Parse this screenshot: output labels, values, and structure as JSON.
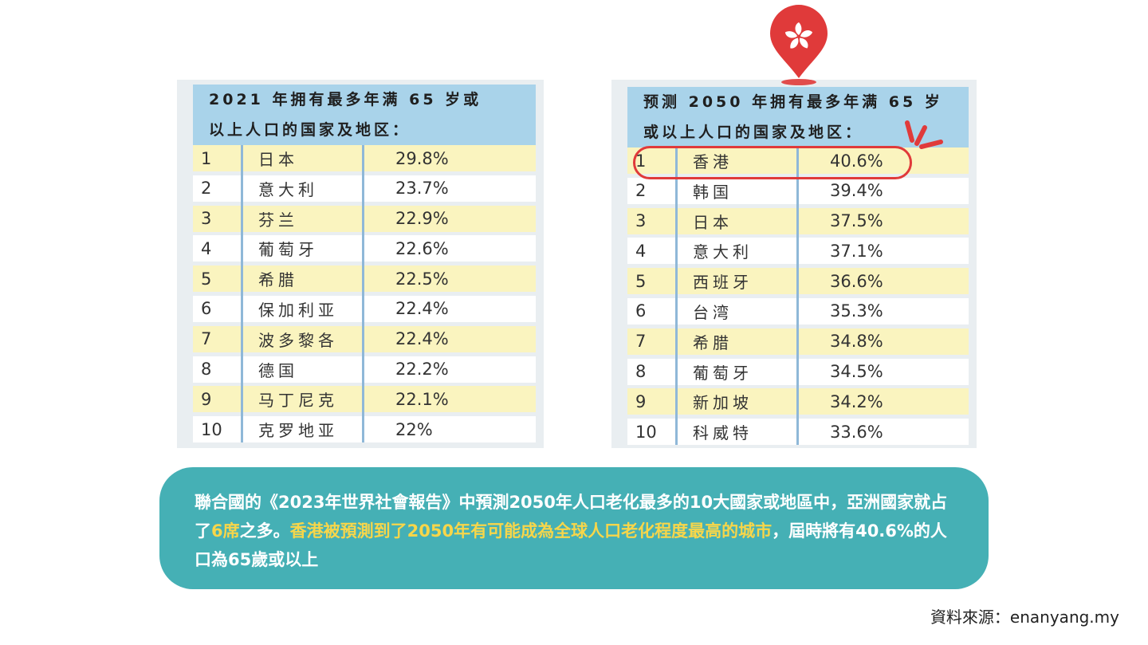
{
  "left_table": {
    "title_line1": "2021 年拥有最多年满 65 岁或",
    "title_line2": "以上人口的国家及地区：",
    "rows": [
      {
        "rank": "1",
        "name": "日本",
        "pct": "29.8%"
      },
      {
        "rank": "2",
        "name": "意大利",
        "pct": "23.7%"
      },
      {
        "rank": "3",
        "name": "芬兰",
        "pct": "22.9%"
      },
      {
        "rank": "4",
        "name": "葡萄牙",
        "pct": "22.6%"
      },
      {
        "rank": "5",
        "name": "希腊",
        "pct": "22.5%"
      },
      {
        "rank": "6",
        "name": "保加利亚",
        "pct": "22.4%"
      },
      {
        "rank": "7",
        "name": "波多黎各",
        "pct": "22.4%"
      },
      {
        "rank": "8",
        "name": "德国",
        "pct": "22.2%"
      },
      {
        "rank": "9",
        "name": "马丁尼克",
        "pct": "22.1%"
      },
      {
        "rank": "10",
        "name": "克罗地亚",
        "pct": "22%"
      }
    ]
  },
  "right_table": {
    "title_line1": "预测 2050 年拥有最多年满 65 岁",
    "title_line2": "或以上人口的国家及地区：",
    "rows": [
      {
        "rank": "1",
        "name": "香港",
        "pct": "40.6%"
      },
      {
        "rank": "2",
        "name": "韩国",
        "pct": "39.4%"
      },
      {
        "rank": "3",
        "name": "日本",
        "pct": "37.5%"
      },
      {
        "rank": "4",
        "name": "意大利",
        "pct": "37.1%"
      },
      {
        "rank": "5",
        "name": "西班牙",
        "pct": "36.6%"
      },
      {
        "rank": "6",
        "name": "台湾",
        "pct": "35.3%"
      },
      {
        "rank": "7",
        "name": "希腊",
        "pct": "34.8%"
      },
      {
        "rank": "8",
        "name": "葡萄牙",
        "pct": "34.5%"
      },
      {
        "rank": "9",
        "name": "新加坡",
        "pct": "34.2%"
      },
      {
        "rank": "10",
        "name": "科威特",
        "pct": "33.6%"
      }
    ]
  },
  "caption": {
    "part1": "聯合國的《2023年世界社會報告》中預測2050年人口老化最多的10大國家或地區中，亞洲國家就占了",
    "part2_yellow": "6席",
    "part3": "之多。",
    "part4_yellow": "香港被預測到了2050年有可能成為全球人口老化程度最高的城市",
    "part5": "，屆時將有40.6%的人口為65歲或以上"
  },
  "source": "資料來源：enanyang.my",
  "colors": {
    "header_bg": "#a9d3ea",
    "row_highlight": "#faf4bf",
    "caption_bg": "#45b0b5",
    "caption_accent": "#f7d64a",
    "ring": "#e03a3a"
  },
  "icons": {
    "pin": "hong-kong-flag-map-pin-icon",
    "spark": "attention-spark-icon"
  }
}
